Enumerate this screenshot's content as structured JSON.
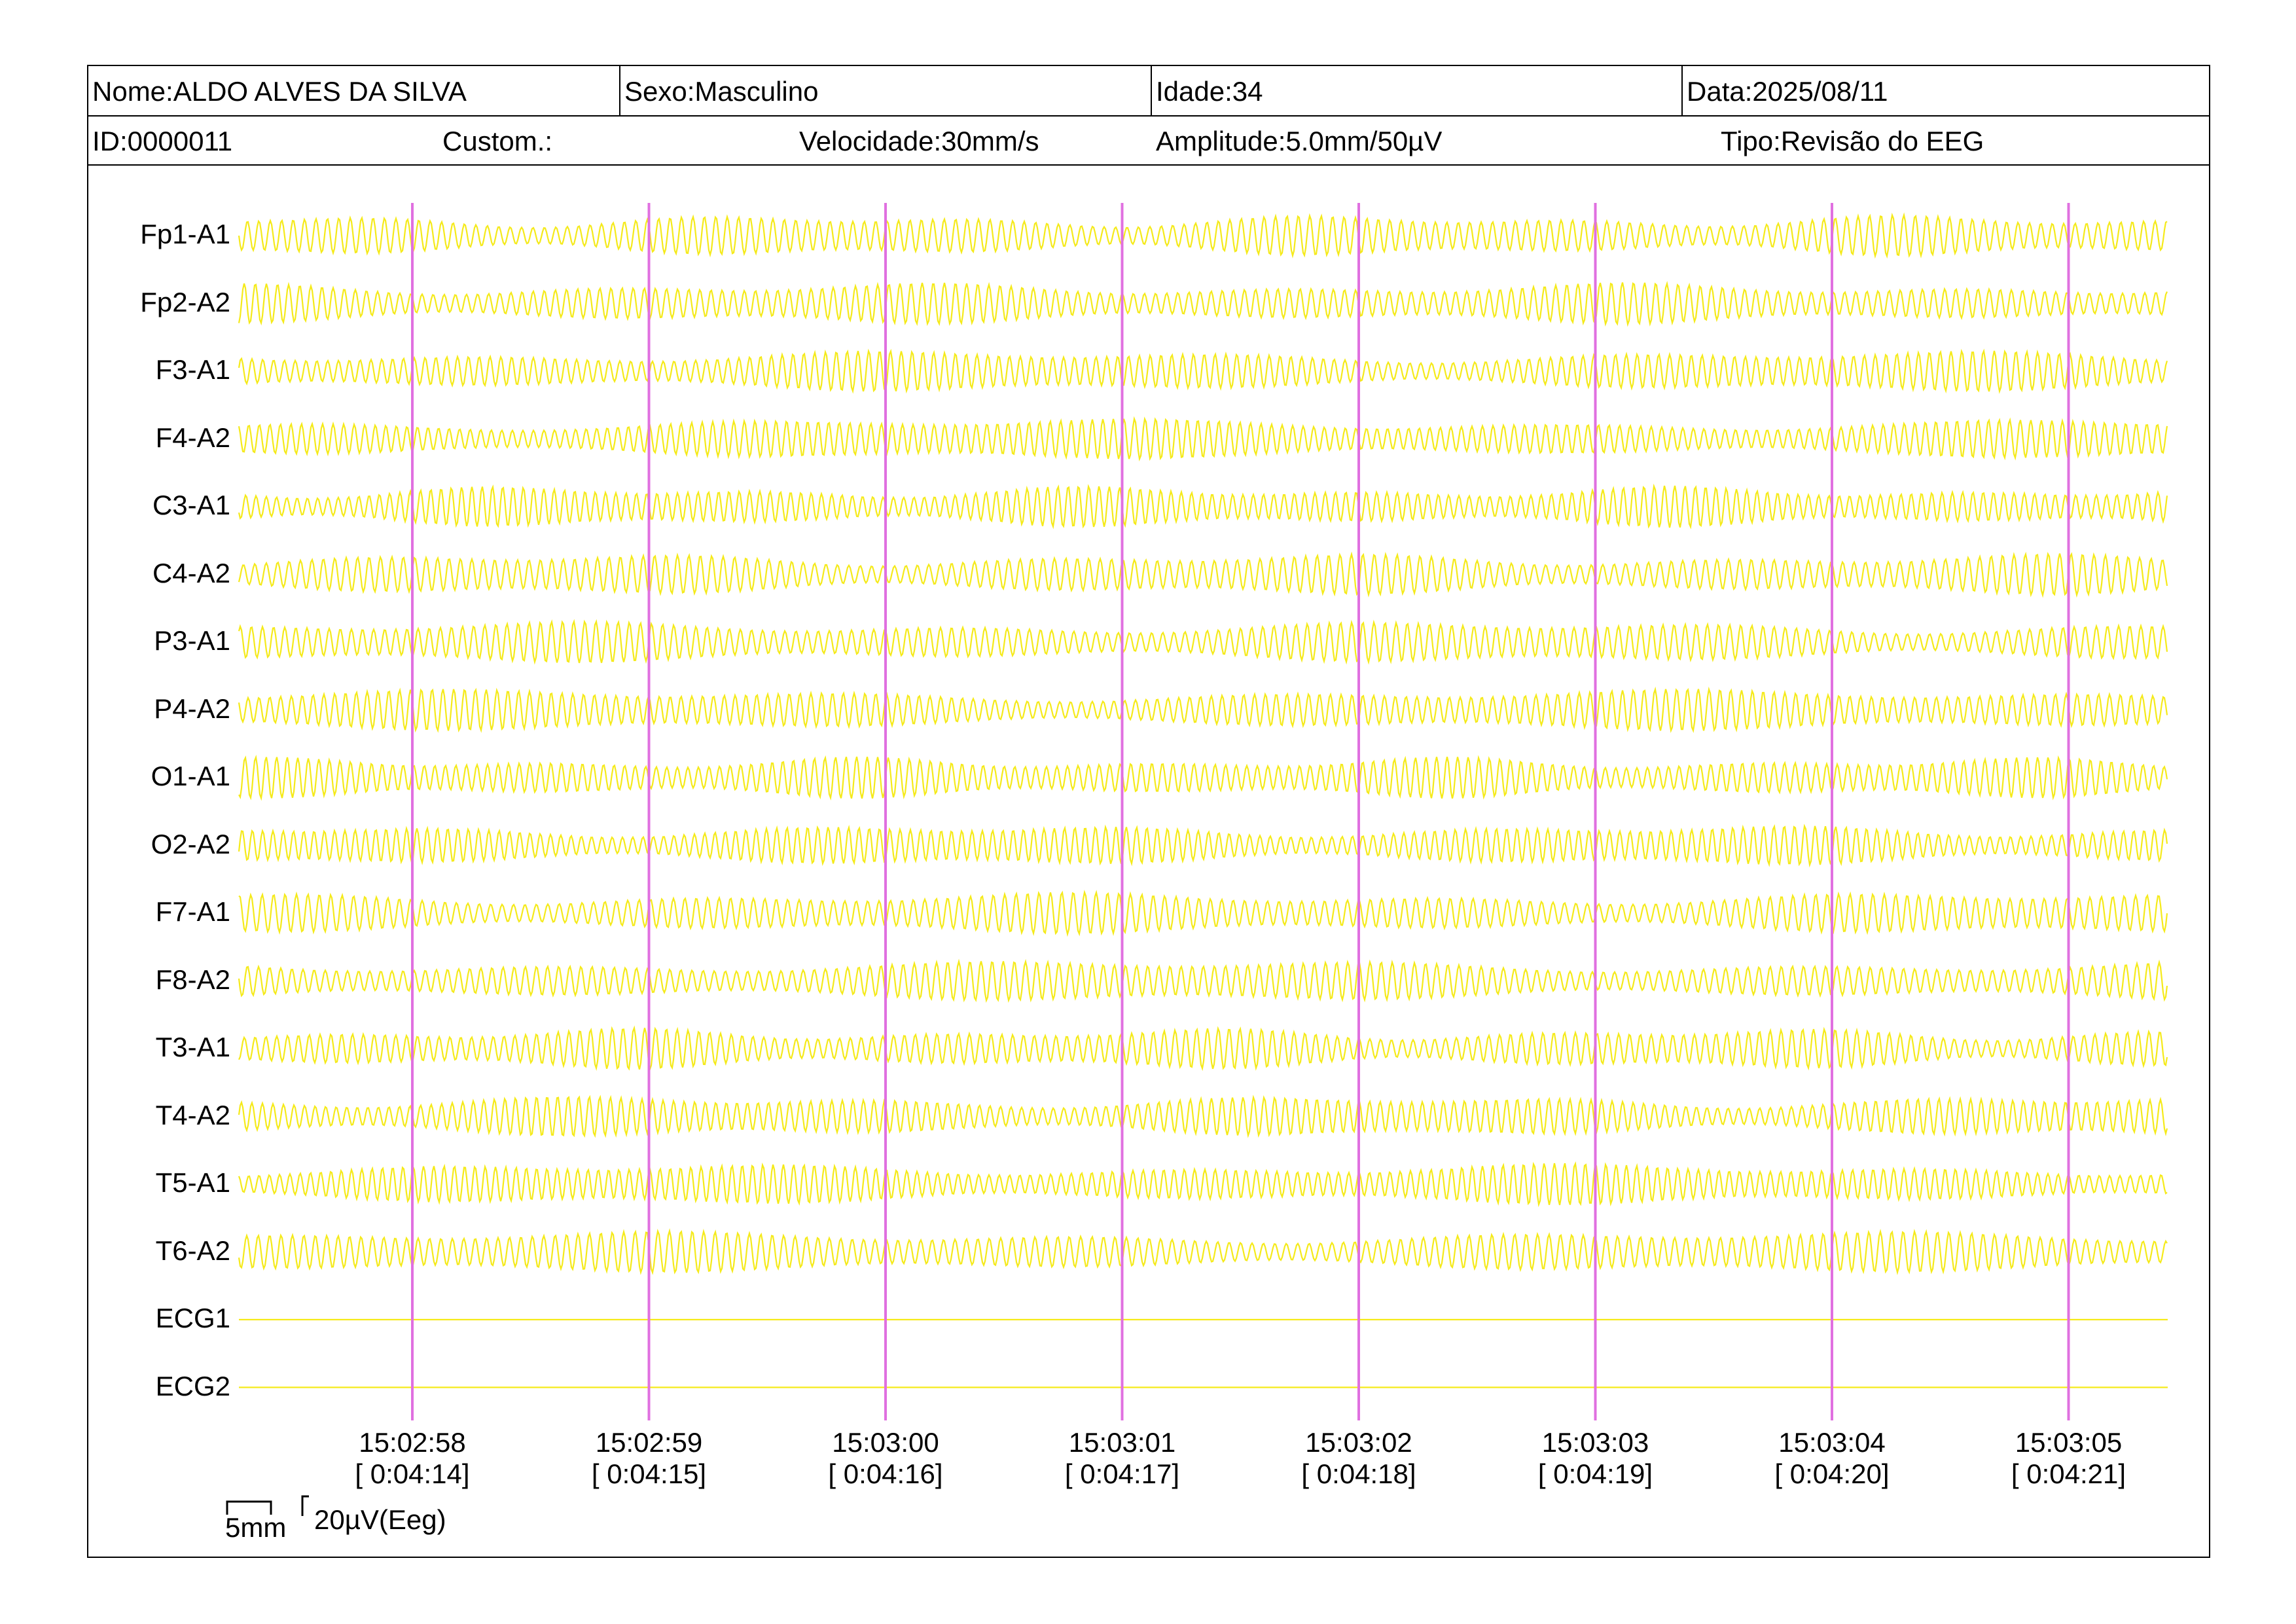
{
  "header": {
    "name": "Nome:ALDO ALVES DA SILVA",
    "sex": "Sexo:Masculino",
    "age": "Idade:34",
    "date": "Data:2025/08/11",
    "id": "ID:0000011",
    "custom": "Custom.:",
    "speed": "Velocidade:30mm/s",
    "amplitude": "Amplitude:5.0mm/50µV",
    "type": "Tipo:Revisão do EEG"
  },
  "channels": [
    "Fp1-A1",
    "Fp2-A2",
    "F3-A1",
    "F4-A2",
    "C3-A1",
    "C4-A2",
    "P3-A1",
    "P4-A2",
    "O1-A1",
    "O2-A2",
    "F7-A1",
    "F8-A2",
    "T3-A1",
    "T4-A2",
    "T5-A1",
    "T6-A2",
    "ECG1",
    "ECG2"
  ],
  "flat_channels": [
    "ECG1",
    "ECG2"
  ],
  "time_markers": [
    {
      "clock": "15:02:58",
      "elapsed": "[ 0:04:14]"
    },
    {
      "clock": "15:02:59",
      "elapsed": "[ 0:04:15]"
    },
    {
      "clock": "15:03:00",
      "elapsed": "[ 0:04:16]"
    },
    {
      "clock": "15:03:01",
      "elapsed": "[ 0:04:17]"
    },
    {
      "clock": "15:03:02",
      "elapsed": "[ 0:04:18]"
    },
    {
      "clock": "15:03:03",
      "elapsed": "[ 0:04:19]"
    },
    {
      "clock": "15:03:04",
      "elapsed": "[ 0:04:20]"
    },
    {
      "clock": "15:03:05",
      "elapsed": "[ 0:04:21]"
    }
  ],
  "scale": {
    "time": "5mm",
    "amplitude": "20µV(Eeg)"
  },
  "colors": {
    "trace": "#f5ea1a",
    "marker": "#e070e0",
    "border": "#000000"
  }
}
